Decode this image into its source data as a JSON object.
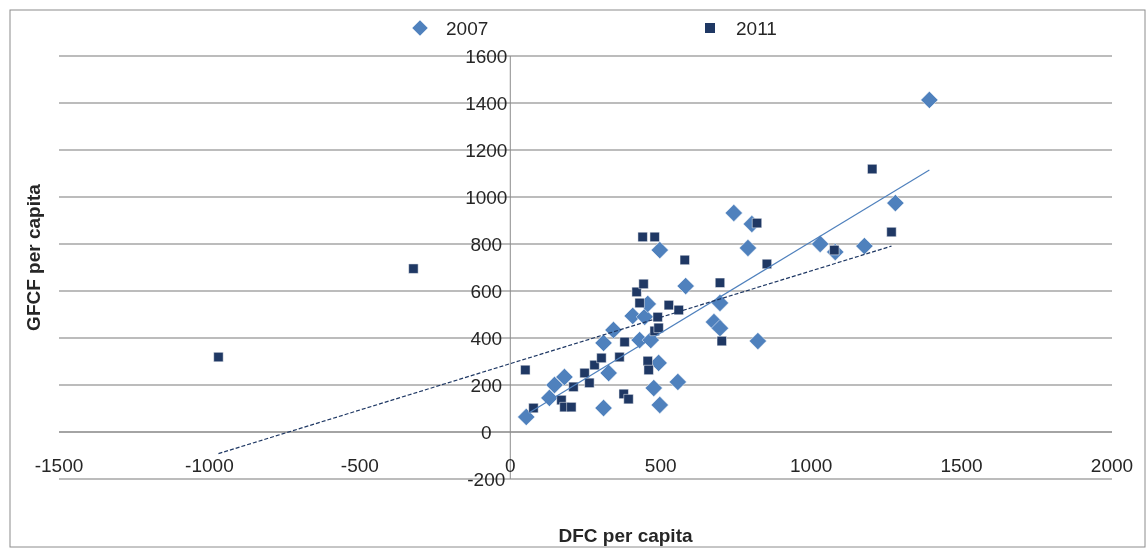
{
  "chart_data": {
    "type": "scatter",
    "xlabel": "DFC per capita",
    "ylabel": "GFCF per capita",
    "xlim": [
      -1500,
      2000
    ],
    "xticks": [
      -1500,
      -1000,
      -500,
      0,
      500,
      1000,
      1500,
      2000
    ],
    "ylim": [
      -200,
      1600
    ],
    "yticks": [
      -200,
      0,
      200,
      400,
      600,
      800,
      1000,
      1200,
      1400,
      1600
    ],
    "grid": "y",
    "legend": "top",
    "series": [
      {
        "name": "2007",
        "color": "#4f81bd",
        "marker": "diamond",
        "x": [
          53,
          130,
          147,
          180,
          310,
          327,
          310,
          343,
          407,
          447,
          457,
          430,
          467,
          493,
          477,
          497,
          557,
          497,
          583,
          697,
          677,
          697,
          823,
          743,
          803,
          790,
          1030,
          1080,
          1177,
          1280,
          1393
        ],
        "values": [
          64,
          145,
          200,
          234,
          102,
          251,
          379,
          434,
          494,
          490,
          545,
          391,
          391,
          294,
          187,
          115,
          213,
          774,
          621,
          549,
          468,
          442,
          387,
          932,
          885,
          783,
          800,
          766,
          791,
          974,
          1413
        ]
      },
      {
        "name": "2011",
        "color": "#1f3864",
        "marker": "square",
        "x": [
          -970,
          -322,
          50,
          77,
          170,
          180,
          203,
          210,
          247,
          263,
          280,
          303,
          363,
          377,
          393,
          380,
          420,
          430,
          443,
          440,
          480,
          457,
          460,
          480,
          493,
          490,
          527,
          560,
          580,
          697,
          703,
          820,
          853,
          1077,
          1203,
          1267
        ],
        "values": [
          319,
          695,
          264,
          102,
          136,
          106,
          106,
          192,
          251,
          209,
          285,
          315,
          319,
          162,
          140,
          383,
          596,
          549,
          630,
          830,
          830,
          302,
          264,
          430,
          443,
          489,
          540,
          519,
          732,
          635,
          387,
          889,
          715,
          774,
          1119,
          851
        ]
      },
      {
        "type": "line",
        "color": "#4f81bd",
        "marker": "none",
        "line_style": "solid",
        "x": [
          60,
          1393
        ],
        "values": [
          80,
          1115
        ]
      },
      {
        "type": "line",
        "color": "#1f3864",
        "marker": "none",
        "line_style": "dashed",
        "x": [
          -970,
          1267
        ],
        "values": [
          -92,
          791
        ]
      }
    ]
  }
}
